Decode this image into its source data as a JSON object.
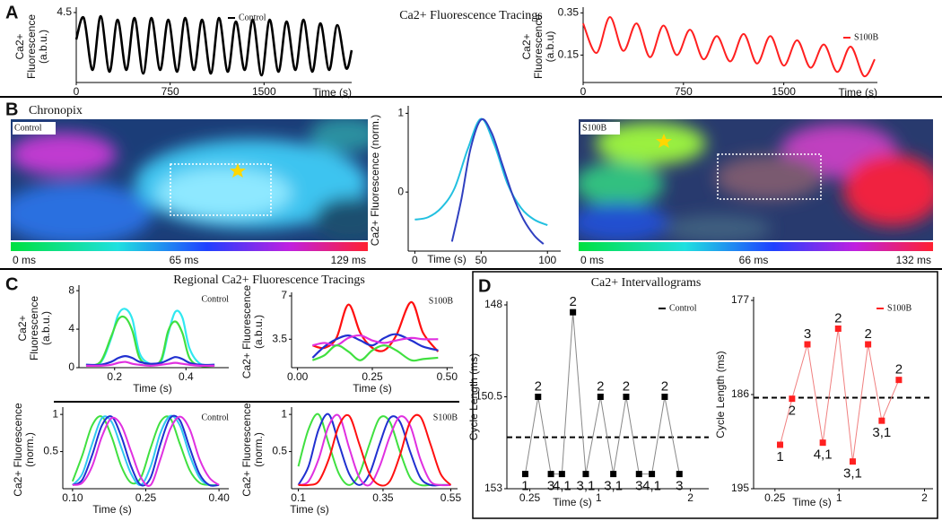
{
  "panel_labels": [
    "A",
    "B",
    "C",
    "D"
  ],
  "headings": {
    "a": "Ca2+ Fluorescence Tracings",
    "b": "Chronopix",
    "c": "Regional Ca2+ Fluorescence Tracings",
    "d": "Ca2+ Intervallograms"
  },
  "maps": [
    {
      "label": "Control",
      "scale_labels": [
        "0 ms",
        "65 ms",
        "129 ms"
      ]
    },
    {
      "label": "S100B",
      "scale_labels": [
        "0 ms",
        "66 ms",
        "132 ms"
      ]
    }
  ],
  "chart_data": [
    {
      "type": "line",
      "xlabel": "Time (s)",
      "ylabel": [
        "Ca2+",
        "Fluorescence",
        "(a.b.u.)"
      ],
      "xlim": [
        0,
        2200
      ],
      "ylim": [
        0.6,
        4.6
      ],
      "xticks": [
        0,
        750,
        1500
      ],
      "yticks": [
        4.5
      ],
      "legend": "upper center",
      "x": [
        0,
        60,
        130,
        195,
        265,
        330,
        400,
        465,
        535,
        600,
        670,
        735,
        805,
        870,
        940,
        1005,
        1075,
        1140,
        1210,
        1275,
        1345,
        1410,
        1480,
        1545,
        1615,
        1680,
        1750,
        1815,
        1885,
        1950,
        2020,
        2085,
        2155,
        2200
      ],
      "series": [
        {
          "name": "Control",
          "color": "#000000",
          "values": [
            3.0,
            4.2,
            1.3,
            4.3,
            1.2,
            4.1,
            1.3,
            4.2,
            1.1,
            4.2,
            1.3,
            4.1,
            1.2,
            4.2,
            1.3,
            4.1,
            1.1,
            4.2,
            1.2,
            4.0,
            1.3,
            4.1,
            1.0,
            4.1,
            1.2,
            4.0,
            1.3,
            4.1,
            1.2,
            3.9,
            1.3,
            3.8,
            1.4,
            2.4
          ]
        }
      ]
    },
    {
      "type": "line",
      "xlabel": "Time (s)",
      "ylabel": [
        "Ca2+",
        "Fluorescence",
        "(a.b.u)"
      ],
      "xlim": [
        0,
        2200
      ],
      "ylim": [
        0.02,
        0.36
      ],
      "xticks": [
        0,
        750,
        1500
      ],
      "yticks": [
        0.15,
        0.35
      ],
      "legend": "upper right",
      "x": [
        0,
        100,
        200,
        300,
        400,
        500,
        600,
        700,
        800,
        900,
        1000,
        1100,
        1200,
        1300,
        1400,
        1500,
        1600,
        1700,
        1800,
        1900,
        2000,
        2100,
        2180
      ],
      "series": [
        {
          "name": "S100B",
          "color": "#ff2020",
          "values": [
            0.3,
            0.16,
            0.33,
            0.17,
            0.3,
            0.14,
            0.29,
            0.15,
            0.27,
            0.13,
            0.24,
            0.12,
            0.25,
            0.11,
            0.24,
            0.1,
            0.22,
            0.09,
            0.2,
            0.07,
            0.19,
            0.05,
            0.13
          ]
        }
      ]
    },
    {
      "type": "line",
      "xlabel": "Time (s)",
      "ylabel": [
        "Ca2+ Fluorescence (norm.)"
      ],
      "xlim": [
        -5,
        110
      ],
      "ylim": [
        -0.75,
        1.05
      ],
      "xticks": [
        0,
        50,
        100
      ],
      "yticks": [
        0,
        1
      ],
      "series": [
        {
          "color": "#22c0e0",
          "x": [
            0,
            10,
            20,
            30,
            40,
            50,
            60,
            70,
            80,
            90,
            100
          ],
          "values": [
            -0.35,
            -0.32,
            -0.2,
            0.05,
            0.55,
            0.93,
            0.6,
            0.1,
            -0.2,
            -0.35,
            -0.42
          ]
        },
        {
          "color": "#3040c0",
          "x": [
            28,
            35,
            42,
            50,
            58,
            66,
            74,
            82,
            90,
            97
          ],
          "values": [
            -0.63,
            -0.1,
            0.55,
            0.92,
            0.75,
            0.35,
            -0.05,
            -0.35,
            -0.55,
            -0.66
          ]
        }
      ]
    },
    {
      "type": "line",
      "xlabel": "Time (s)",
      "ylabel": [
        "Ca2+",
        "Fluorescence",
        "(a.b.u.)"
      ],
      "annotation": "Control",
      "xlim": [
        0.1,
        0.52
      ],
      "ylim": [
        0,
        8.2
      ],
      "xticks": [
        0.2,
        0.4
      ],
      "yticks": [
        0,
        4,
        8
      ],
      "x": [
        0.12,
        0.16,
        0.19,
        0.21,
        0.23,
        0.25,
        0.27,
        0.3,
        0.33,
        0.35,
        0.37,
        0.39,
        0.41,
        0.44,
        0.48
      ],
      "series": [
        {
          "color": "#30e8f0",
          "values": [
            0.3,
            0.5,
            3.0,
            5.5,
            6.1,
            5.0,
            1.5,
            0.4,
            0.6,
            3.5,
            5.8,
            5.2,
            2.0,
            0.4,
            0.3
          ]
        },
        {
          "color": "#40e040",
          "values": [
            0.2,
            0.6,
            3.2,
            5.0,
            5.2,
            3.8,
            1.0,
            0.3,
            0.8,
            3.8,
            4.8,
            3.6,
            1.0,
            0.2,
            0.2
          ]
        },
        {
          "color": "#2030d0",
          "values": [
            0.3,
            0.3,
            0.6,
            1.0,
            1.2,
            1.0,
            0.6,
            0.4,
            0.5,
            0.8,
            1.1,
            0.9,
            0.5,
            0.3,
            0.3
          ]
        },
        {
          "color": "#e030e0",
          "values": [
            0.2,
            0.2,
            0.3,
            0.5,
            0.6,
            0.4,
            0.3,
            0.2,
            0.3,
            0.4,
            0.5,
            0.4,
            0.3,
            0.2,
            0.2
          ]
        }
      ]
    },
    {
      "type": "line",
      "xlabel": "Time (s)",
      "ylabel": [
        "Ca2+ Fluorescence",
        "(a.b.u.)"
      ],
      "annotation": "S100B",
      "xlim": [
        -0.02,
        0.52
      ],
      "ylim": [
        1.2,
        7
      ],
      "xticks": [
        {
          "value": 0,
          "label": "0.00"
        },
        0.25,
        {
          "value": 0.5,
          "label": "0.50"
        }
      ],
      "yticks": [
        3.5,
        7
      ],
      "x": [
        0.05,
        0.09,
        0.13,
        0.17,
        0.21,
        0.25,
        0.29,
        0.33,
        0.38,
        0.42,
        0.47
      ],
      "series": [
        {
          "color": "#ff1010",
          "values": [
            3.0,
            2.8,
            3.6,
            6.3,
            4.0,
            2.8,
            2.6,
            3.8,
            6.5,
            4.0,
            2.5
          ]
        },
        {
          "color": "#2030d0",
          "values": [
            2.0,
            2.9,
            3.5,
            3.8,
            3.4,
            3.0,
            3.6,
            3.9,
            3.4,
            2.9,
            2.6
          ]
        },
        {
          "color": "#e030e0",
          "values": [
            3.0,
            3.2,
            3.0,
            3.6,
            3.8,
            3.4,
            3.2,
            3.4,
            3.6,
            3.5,
            3.5
          ]
        },
        {
          "color": "#40e040",
          "values": [
            1.8,
            2.2,
            3.0,
            2.5,
            1.8,
            2.6,
            3.0,
            2.6,
            1.8,
            1.9,
            2.0
          ]
        }
      ]
    },
    {
      "type": "line",
      "xlabel": "Time (s)",
      "ylabel": [
        "Ca2+ Fluorescence",
        "(norm.)"
      ],
      "annotation": "Control",
      "xlim": [
        0.08,
        0.42
      ],
      "ylim": [
        0,
        1.05
      ],
      "xticks": [
        {
          "value": 0.1,
          "label": "0.10"
        },
        0.25,
        {
          "value": 0.4,
          "label": "0.40"
        }
      ],
      "yticks": [
        0.5,
        1
      ],
      "x": [
        0.1,
        0.12,
        0.14,
        0.16,
        0.18,
        0.2,
        0.22,
        0.24,
        0.26,
        0.28,
        0.3,
        0.32,
        0.34,
        0.36,
        0.38,
        0.4
      ],
      "series": [
        {
          "color": "#40e040",
          "values": [
            0.1,
            0.45,
            0.85,
            0.97,
            0.7,
            0.3,
            0.08,
            0.15,
            0.55,
            0.9,
            0.95,
            0.6,
            0.25,
            0.08,
            0.05,
            0.05
          ]
        },
        {
          "color": "#30c8f0",
          "values": [
            0.05,
            0.2,
            0.6,
            0.95,
            0.9,
            0.55,
            0.2,
            0.05,
            0.3,
            0.75,
            0.98,
            0.85,
            0.45,
            0.15,
            0.05,
            0.05
          ]
        },
        {
          "color": "#2030d0",
          "values": [
            0.05,
            0.12,
            0.45,
            0.85,
            0.97,
            0.7,
            0.3,
            0.05,
            0.15,
            0.6,
            0.95,
            0.92,
            0.55,
            0.2,
            0.05,
            0.05
          ]
        },
        {
          "color": "#e030e0",
          "values": [
            0.05,
            0.08,
            0.3,
            0.7,
            0.95,
            0.85,
            0.5,
            0.15,
            0.05,
            0.4,
            0.8,
            0.97,
            0.8,
            0.4,
            0.15,
            0.05
          ]
        }
      ]
    },
    {
      "type": "line",
      "xlabel": "Time (s)",
      "ylabel": [
        "Ca2+ Fluorescence",
        "(norm.)"
      ],
      "annotation": "S100B",
      "xlim": [
        0.08,
        0.57
      ],
      "ylim": [
        0,
        1.05
      ],
      "xticks": [
        0.1,
        0.35,
        0.55
      ],
      "yticks": [
        0.5,
        1
      ],
      "x": [
        0.1,
        0.13,
        0.16,
        0.19,
        0.22,
        0.25,
        0.28,
        0.31,
        0.34,
        0.37,
        0.4,
        0.43,
        0.46,
        0.49,
        0.52,
        0.55
      ],
      "series": [
        {
          "color": "#40e040",
          "values": [
            0.3,
            0.8,
            1.0,
            0.6,
            0.2,
            0.05,
            0.2,
            0.6,
            0.95,
            0.9,
            0.5,
            0.15,
            0.05,
            0.05,
            0.05,
            0.05
          ]
        },
        {
          "color": "#2030d0",
          "values": [
            0.05,
            0.3,
            0.8,
            1.0,
            0.6,
            0.2,
            0.05,
            0.2,
            0.6,
            0.95,
            0.9,
            0.5,
            0.15,
            0.05,
            0.05,
            0.05
          ]
        },
        {
          "color": "#e030e0",
          "values": [
            0.05,
            0.1,
            0.4,
            0.85,
            0.98,
            0.55,
            0.15,
            0.05,
            0.3,
            0.7,
            0.97,
            0.85,
            0.4,
            0.1,
            0.05,
            0.05
          ]
        },
        {
          "color": "#ff1010",
          "values": [
            0.05,
            0.05,
            0.1,
            0.4,
            0.85,
            0.98,
            0.6,
            0.2,
            0.05,
            0.1,
            0.45,
            0.9,
            0.97,
            0.6,
            0.2,
            0.05
          ]
        }
      ]
    },
    {
      "type": "line",
      "markers": true,
      "xlabel": "Time (s)",
      "ylabel": [
        "Cycle Length (ms)"
      ],
      "legend": "upper right",
      "xlim": [
        0,
        2.2
      ],
      "ylim": [
        153,
        148
      ],
      "xticks": [
        0.25,
        1,
        2
      ],
      "yticks": [
        148,
        150.5,
        153
      ],
      "reference_line": 151.6,
      "x": [
        0.2,
        0.34,
        0.48,
        0.6,
        0.72,
        0.86,
        1.02,
        1.16,
        1.3,
        1.44,
        1.58,
        1.72,
        1.88
      ],
      "series": [
        {
          "name": "Control",
          "color": "#000000",
          "line_color": "#888888",
          "values": [
            152.6,
            150.5,
            152.6,
            152.6,
            148.2,
            152.6,
            150.5,
            152.6,
            150.5,
            152.6,
            152.6,
            150.5,
            152.6
          ],
          "point_labels": [
            "1",
            "2",
            "3",
            "4,1",
            "2",
            "3,1",
            "2",
            "3,1",
            "2",
            "3",
            "4,1",
            "2",
            "3"
          ]
        }
      ]
    },
    {
      "type": "line",
      "markers": true,
      "xlabel": "Time (s)",
      "ylabel": [
        "Cycle Length (ms)"
      ],
      "legend": "upper right",
      "xlim": [
        0,
        2.1
      ],
      "ylim": [
        195,
        177
      ],
      "xticks": [
        0.25,
        1,
        2
      ],
      "yticks": [
        177,
        186,
        195
      ],
      "reference_line": 186.3,
      "x": [
        0.31,
        0.45,
        0.63,
        0.81,
        0.99,
        1.16,
        1.34,
        1.5,
        1.7
      ],
      "series": [
        {
          "name": "S100B",
          "color": "#ff2020",
          "line_color": "#f08080",
          "values": [
            190.8,
            186.4,
            181.2,
            190.6,
            179.7,
            192.4,
            181.2,
            188.5,
            184.6
          ],
          "point_labels": [
            "1",
            "2",
            "3",
            "4,1",
            "2",
            "3,1",
            "2",
            "3,1",
            "2"
          ]
        }
      ]
    }
  ]
}
